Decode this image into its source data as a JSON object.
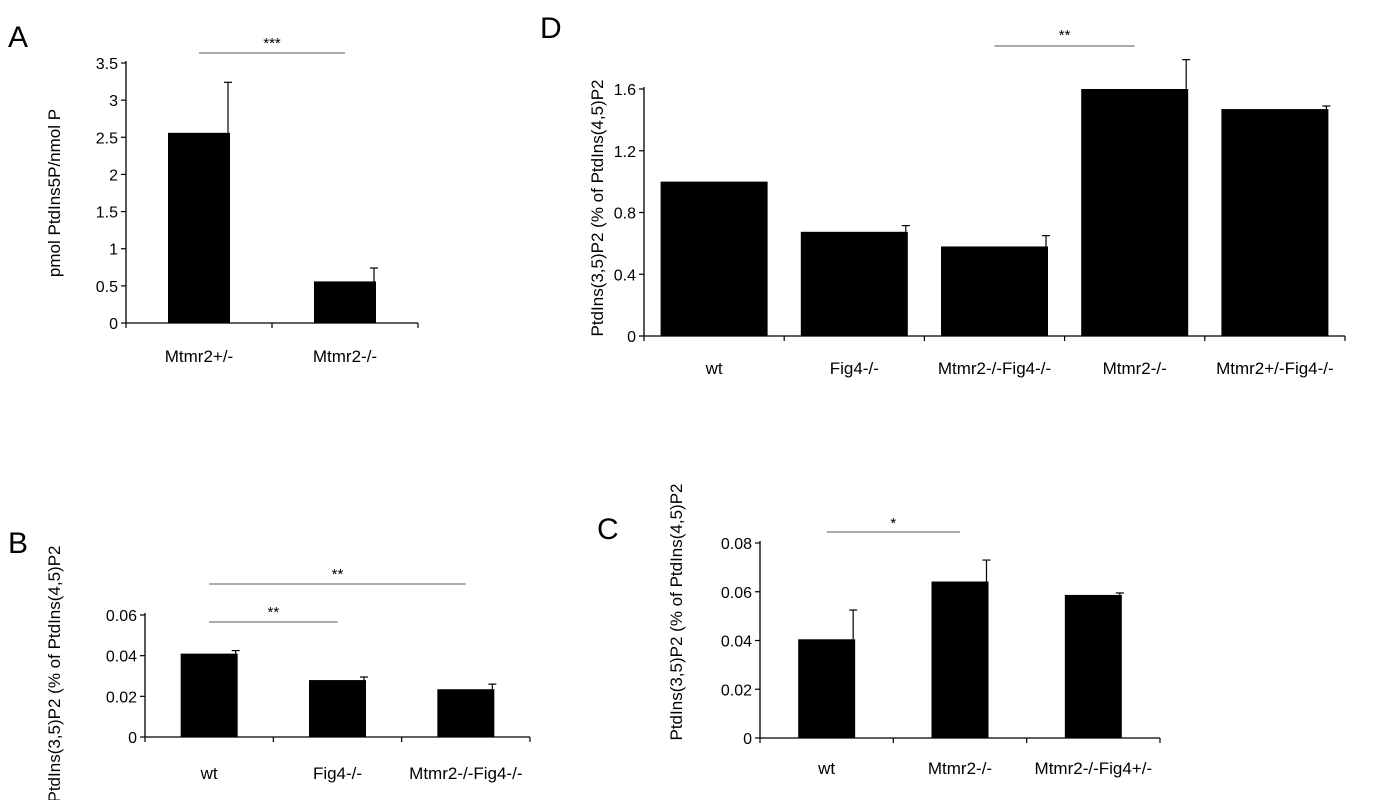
{
  "figure": {
    "panels": [
      "A",
      "B",
      "C",
      "D"
    ]
  },
  "chart_data": [
    {
      "id": "A",
      "panel_letter": "A",
      "type": "bar",
      "ylabel": "pmol PtdIns5P/nmol P",
      "xlabel": "",
      "ylim": [
        0,
        3.5
      ],
      "yticks": [
        0,
        0.5,
        1,
        1.5,
        2,
        2.5,
        3,
        3.5
      ],
      "ytick_labels": [
        "0",
        "0.5",
        "1",
        "1.5",
        "2",
        "2.5",
        "3",
        "3.5"
      ],
      "categories": [
        "Mtmr2+/-",
        "Mtmr2-/-"
      ],
      "values": [
        2.56,
        0.56
      ],
      "errors": [
        0.68,
        0.18
      ],
      "bar_color": "#000000",
      "grid": false,
      "significance": [
        {
          "from": 0,
          "to": 1,
          "label": "***"
        }
      ]
    },
    {
      "id": "B",
      "panel_letter": "B",
      "type": "bar",
      "ylabel": "PtdIns(3,5)P2 (% of PtdIns(4,5)P2",
      "xlabel": "",
      "ylim": [
        0,
        0.06
      ],
      "yticks": [
        0,
        0.02,
        0.04,
        0.06
      ],
      "ytick_labels": [
        "0",
        "0.02",
        "0.04",
        "0.06"
      ],
      "categories": [
        "wt",
        "Fig4-/-",
        "Mtmr2-/-Fig4-/-"
      ],
      "values": [
        0.041,
        0.028,
        0.0235
      ],
      "errors": [
        0.0015,
        0.0015,
        0.0025
      ],
      "bar_color": "#000000",
      "grid": false,
      "significance": [
        {
          "from": 0,
          "to": 1,
          "label": "**",
          "level": 0
        },
        {
          "from": 0,
          "to": 2,
          "label": "**",
          "level": 1
        }
      ]
    },
    {
      "id": "C",
      "panel_letter": "C",
      "type": "bar",
      "ylabel": "PtdIns(3,5)P2 (% of PtdIns(4,5)P2",
      "xlabel": "",
      "ylim": [
        0,
        0.08
      ],
      "yticks": [
        0,
        0.02,
        0.04,
        0.06,
        0.08
      ],
      "ytick_labels": [
        "0",
        "0.02",
        "0.04",
        "0.06",
        "0.08"
      ],
      "categories": [
        "wt",
        "Mtmr2-/-",
        "Mtmr2-/-Fig4+/-"
      ],
      "values": [
        0.0405,
        0.0642,
        0.0587
      ],
      "errors": [
        0.012,
        0.0088,
        0.0008
      ],
      "bar_color": "#000000",
      "grid": false,
      "significance": [
        {
          "from": 0,
          "to": 1,
          "label": "*"
        }
      ]
    },
    {
      "id": "D",
      "panel_letter": "D",
      "type": "bar",
      "ylabel": "PtdIns(3,5)P2 (% of PtdIns(4,5)P2",
      "xlabel": "",
      "ylim": [
        0,
        1.6
      ],
      "yticks": [
        0,
        0.4,
        0.8,
        1.2,
        1.6
      ],
      "ytick_labels": [
        "0",
        "0.4",
        "0.8",
        "1.2",
        "1.6"
      ],
      "categories": [
        "wt",
        "Fig4-/-",
        "Mtmr2-/-Fig4-/-",
        "Mtmr2-/-",
        "Mtmr2+/-Fig4-/-"
      ],
      "values": [
        1.0,
        0.675,
        0.58,
        1.6,
        1.47
      ],
      "errors": [
        0,
        0.04,
        0.07,
        0.19,
        0.02
      ],
      "bar_color": "#000000",
      "grid": false,
      "significance": [
        {
          "from": 2,
          "to": 3,
          "label": "**"
        }
      ]
    }
  ]
}
